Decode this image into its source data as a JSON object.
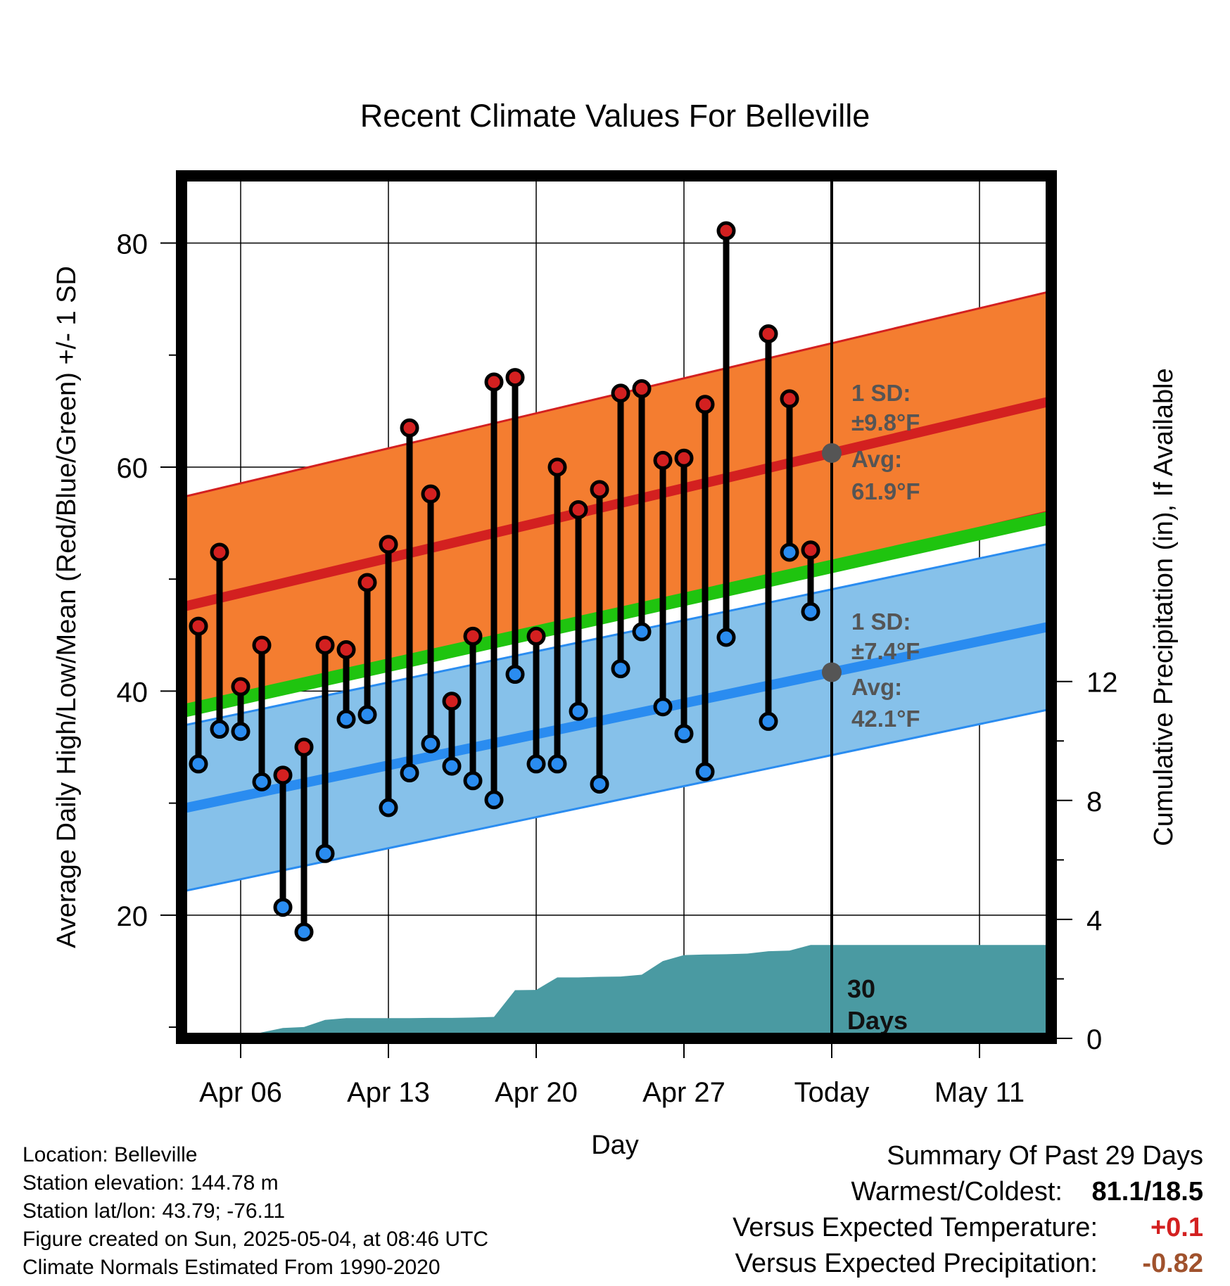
{
  "chart_data": {
    "type": "line",
    "title": "Recent Climate Values For Belleville",
    "xlabel": "Day",
    "ylabel_left": "Average Daily High/Low/Mean (Red/Blue/Green) +/- 1 SD",
    "ylabel_right": "Cumulative Precipitation (in), If Available",
    "xlim": [
      3.2,
      14.4
    ],
    "ylim": [
      9,
      86
    ],
    "ylim_right": [
      0,
      29
    ],
    "x_ticks": [
      {
        "x": 6,
        "label": "Apr 06"
      },
      {
        "x": 13,
        "label": "Apr 13"
      },
      {
        "x": 20,
        "label": "Apr 20"
      },
      {
        "x": 27,
        "label": "Apr 27"
      },
      {
        "x": 34,
        "label": "Today"
      },
      {
        "x": 41,
        "label": "May 11"
      }
    ],
    "y_ticks_left": [
      20,
      40,
      60,
      80
    ],
    "y_ticks_right": [
      0,
      4,
      8,
      12
    ],
    "today_x": 34,
    "normals": {
      "high_mean": {
        "start": 47.5,
        "end": 65.9
      },
      "high_sd": 9.8,
      "low_mean": {
        "start": 29.5,
        "end": 45.8
      },
      "low_sd": 7.4,
      "mean": {
        "start": 38.2,
        "end": 55.5
      }
    },
    "daily": {
      "x": [
        4,
        5,
        6,
        7,
        8,
        9,
        10,
        11,
        12,
        13,
        14,
        15,
        16,
        17,
        18,
        19,
        20,
        21,
        22,
        23,
        24,
        25,
        26,
        27,
        28,
        29,
        31,
        32,
        33
      ],
      "high": [
        45.8,
        52.4,
        40.4,
        44.1,
        32.5,
        35.0,
        44.1,
        43.7,
        49.7,
        53.1,
        63.5,
        57.6,
        39.1,
        44.9,
        67.6,
        68.0,
        44.9,
        60.0,
        56.2,
        58.0,
        66.6,
        67.0,
        60.6,
        60.8,
        65.6,
        81.1,
        71.9,
        66.1,
        52.6
      ],
      "low": [
        33.5,
        36.6,
        36.4,
        31.9,
        20.7,
        18.5,
        25.5,
        37.5,
        37.9,
        29.6,
        32.7,
        35.3,
        33.3,
        32.0,
        30.3,
        41.5,
        33.5,
        33.5,
        38.2,
        31.7,
        42.0,
        45.3,
        38.6,
        36.2,
        32.8,
        44.8,
        37.3,
        52.4,
        47.1
      ],
      "high_color": "#d32020",
      "low_color": "#2a8cf0"
    },
    "precipitation": {
      "x": [
        3.2,
        6,
        7,
        8,
        9,
        10,
        11,
        12,
        13,
        14,
        15,
        16,
        17,
        18,
        19,
        20,
        21,
        22,
        23,
        24,
        25,
        26,
        27,
        28,
        29,
        30,
        31,
        32,
        33,
        34,
        35,
        41,
        44.4
      ],
      "cumulative": [
        0,
        0.02,
        0.2,
        0.35,
        0.38,
        0.62,
        0.68,
        0.68,
        0.68,
        0.68,
        0.69,
        0.69,
        0.7,
        0.72,
        1.62,
        1.63,
        2.05,
        2.05,
        2.07,
        2.08,
        2.14,
        2.6,
        2.8,
        2.82,
        2.83,
        2.85,
        2.93,
        2.95,
        3.14,
        3.14,
        3.14,
        3.14,
        3.14
      ],
      "color": "#4a9aa2",
      "label_value": "30",
      "label_unit": "Days"
    },
    "annotations": {
      "high_sd_title": "1 SD:",
      "high_sd_value": "±9.8°F",
      "high_avg_title": "Avg:",
      "high_avg_value": "61.9°F",
      "low_sd_title": "1 SD:",
      "low_sd_value": "±7.4°F",
      "low_avg_title": "Avg:",
      "low_avg_value": "42.1°F"
    },
    "colors": {
      "high_band": "#f47d30",
      "high_line": "#d32020",
      "low_band": "#86c1ea",
      "low_line": "#2a8cf0",
      "mean_line": "#1fc40f",
      "marker_gray": "#555555"
    }
  },
  "footer": {
    "location": "Location: Belleville",
    "elevation": "Station elevation: 144.78 m",
    "latlon": "Station lat/lon: 43.79; -76.11",
    "created": "Figure created on Sun, 2025-05-04, at 08:46 UTC",
    "normals": "Climate Normals Estimated From 1990-2020"
  },
  "summary": {
    "title": "Summary Of Past 29 Days",
    "warmest_label": "Warmest/Coldest:",
    "warmest_value": "81.1/18.5",
    "temp_label": "Versus Expected Temperature:",
    "temp_value": "+0.1",
    "temp_color": "#d32020",
    "precip_label": "Versus Expected Precipitation:",
    "precip_value": "-0.82",
    "precip_color": "#a0522d"
  }
}
